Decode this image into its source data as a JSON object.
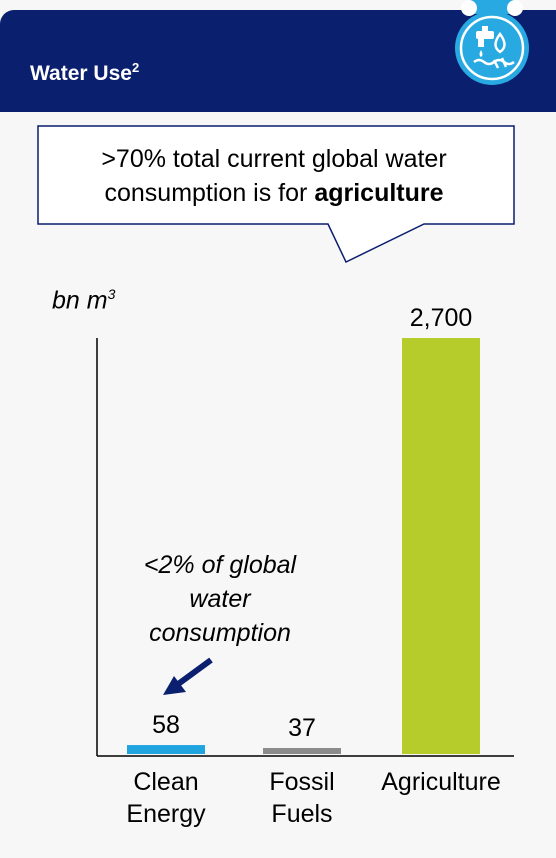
{
  "header": {
    "title": "Water Use",
    "title_sup": "2",
    "icon": "water-faucet-icon",
    "background": "#0a1f6e",
    "icon_accent": "#29a9e1"
  },
  "callout": {
    "text_before": ">70% total current global water consumption is for ",
    "text_bold": "agriculture"
  },
  "annotation": {
    "text": "<2% of global water consumption",
    "arrow_color": "#0a1f6e"
  },
  "chart_data": {
    "type": "bar",
    "ylabel": "bn m",
    "ylabel_sup": "3",
    "categories": [
      [
        "Clean",
        "Energy"
      ],
      [
        "Fossil",
        "Fuels"
      ],
      [
        "Agriculture"
      ]
    ],
    "values": [
      58,
      37,
      2700
    ],
    "value_labels": [
      "58",
      "37",
      "2,700"
    ],
    "colors": [
      "#1fa4e0",
      "#8c8c8c",
      "#b5cc2b"
    ],
    "ylim": [
      0,
      2700
    ],
    "grid": false
  }
}
